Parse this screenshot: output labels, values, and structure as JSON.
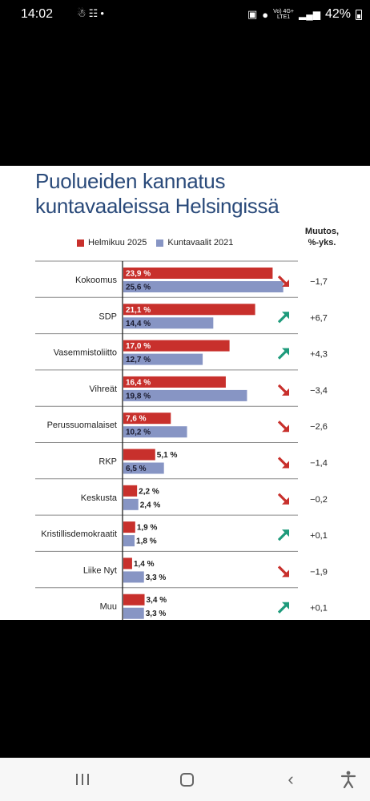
{
  "status_bar": {
    "time": "14:02",
    "left_icons": [
      "child-icon",
      "people-icon",
      "dot-icon"
    ],
    "network": "Vo) 4G+\nLTE1",
    "battery": "42%"
  },
  "chart_data": {
    "type": "bar",
    "orientation": "horizontal",
    "title": "Puolueiden kannatus kuntavaaleissa Helsingissä",
    "change_header_line1": "Muutos,",
    "change_header_line2": "%-yks.",
    "categories": [
      "Kokoomus",
      "SDP",
      "Vasemmistoliitto",
      "Vihreät",
      "Perussuomalaiset",
      "RKP",
      "Keskusta",
      "Kristillisdemokraatit",
      "Liike Nyt",
      "Muu"
    ],
    "series": [
      {
        "name": "Helmikuu 2025",
        "color": "#c8302c",
        "values": [
          23.9,
          21.1,
          17.0,
          16.4,
          7.6,
          5.1,
          2.2,
          1.9,
          1.4,
          3.4
        ],
        "labels": [
          "23,9 %",
          "21,1 %",
          "17,0 %",
          "16,4 %",
          "7,6 %",
          "5,1 %",
          "2,2 %",
          "1,9 %",
          "1,4 %",
          "3,4 %"
        ]
      },
      {
        "name": "Kuntavaalit 2021",
        "color": "#8795c4",
        "values": [
          25.6,
          14.4,
          12.7,
          19.8,
          10.2,
          6.5,
          2.4,
          1.8,
          3.3,
          3.3
        ],
        "labels": [
          "25,6 %",
          "14,4 %",
          "12,7 %",
          "19,8 %",
          "10,2 %",
          "6,5 %",
          "2,4 %",
          "1,8 %",
          "3,3 %",
          "3,3 %"
        ]
      }
    ],
    "changes": [
      -1.7,
      6.7,
      4.3,
      -3.4,
      -2.6,
      -1.4,
      -0.2,
      0.1,
      -1.9,
      0.1
    ],
    "change_labels": [
      "−1,7",
      "+6,7",
      "+4,3",
      "−3,4",
      "−2,6",
      "−1,4",
      "−0,2",
      "+0,1",
      "−1,9",
      "+0,1"
    ],
    "arrow_colors": {
      "down": "#c8302c",
      "up": "#1f9b7c"
    },
    "legend_position": "top",
    "grid": false
  },
  "nav_bar": {
    "buttons": [
      "recents",
      "home",
      "back",
      "accessibility"
    ]
  }
}
